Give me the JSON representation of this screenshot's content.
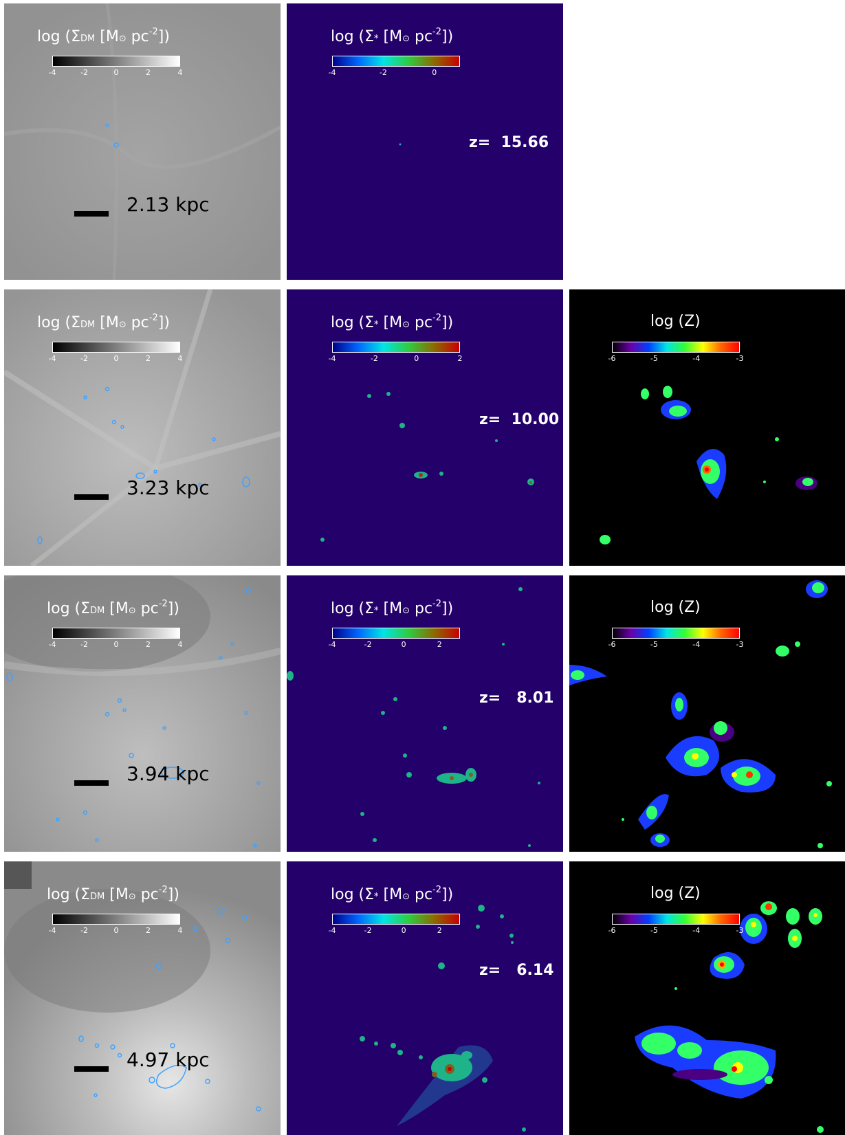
{
  "rows": [
    {
      "dm": {
        "cbar_title_main": "log (Σ",
        "cbar_title_sub": "DM",
        "cbar_title_unit": " [M",
        "cbar_title_sun": "⊙",
        "cbar_title_rest": " pc",
        "cbar_title_exp": "-2",
        "cbar_title_end": "])",
        "ticks": [
          "-4",
          "-2",
          "0",
          "2",
          "4"
        ],
        "scale_label": "2.13 kpc"
      },
      "stars": {
        "cbar_title_main": "log (Σ",
        "cbar_title_sub": "*",
        "cbar_title_unit": " [M",
        "cbar_title_sun": "⊙",
        "cbar_title_rest": " pc",
        "cbar_title_exp": "-2",
        "cbar_title_end": "])",
        "ticks": [
          "-4",
          "-2",
          "0"
        ],
        "redshift": "z=  15.66"
      },
      "metal": null
    },
    {
      "dm": {
        "cbar_title_main": "log (Σ",
        "cbar_title_sub": "DM",
        "cbar_title_unit": " [M",
        "cbar_title_sun": "⊙",
        "cbar_title_rest": " pc",
        "cbar_title_exp": "-2",
        "cbar_title_end": "])",
        "ticks": [
          "-4",
          "-2",
          "0",
          "2",
          "4"
        ],
        "scale_label": "3.23 kpc"
      },
      "stars": {
        "cbar_title_main": "log (Σ",
        "cbar_title_sub": "*",
        "cbar_title_unit": " [M",
        "cbar_title_sun": "⊙",
        "cbar_title_rest": " pc",
        "cbar_title_exp": "-2",
        "cbar_title_end": "])",
        "ticks": [
          "-4",
          "-2",
          "0",
          "2"
        ],
        "redshift": "z=  10.00"
      },
      "metal": {
        "cbar_title": "log (Z)",
        "ticks": [
          "-6",
          "-5",
          "-4",
          "-3"
        ]
      }
    },
    {
      "dm": {
        "cbar_title_main": "log (Σ",
        "cbar_title_sub": "DM",
        "cbar_title_unit": " [M",
        "cbar_title_sun": "⊙",
        "cbar_title_rest": " pc",
        "cbar_title_exp": "-2",
        "cbar_title_end": "])",
        "ticks": [
          "-4",
          "-2",
          "0",
          "2",
          "4"
        ],
        "scale_label": "3.94 kpc"
      },
      "stars": {
        "cbar_title_main": "log (Σ",
        "cbar_title_sub": "*",
        "cbar_title_unit": " [M",
        "cbar_title_sun": "⊙",
        "cbar_title_rest": " pc",
        "cbar_title_exp": "-2",
        "cbar_title_end": "])",
        "ticks": [
          "-4",
          "-2",
          "0",
          "2"
        ],
        "redshift": "z=   8.01"
      },
      "metal": {
        "cbar_title": "log (Z)",
        "ticks": [
          "-6",
          "-5",
          "-4",
          "-3"
        ]
      }
    },
    {
      "dm": {
        "cbar_title_main": "log (Σ",
        "cbar_title_sub": "DM",
        "cbar_title_unit": " [M",
        "cbar_title_sun": "⊙",
        "cbar_title_rest": " pc",
        "cbar_title_exp": "-2",
        "cbar_title_end": "])",
        "ticks": [
          "-4",
          "-2",
          "0",
          "2",
          "4"
        ],
        "scale_label": "4.97 kpc"
      },
      "stars": {
        "cbar_title_main": "log (Σ",
        "cbar_title_sub": "*",
        "cbar_title_unit": " [M",
        "cbar_title_sun": "⊙",
        "cbar_title_rest": " pc",
        "cbar_title_exp": "-2",
        "cbar_title_end": "])",
        "ticks": [
          "-4",
          "-2",
          "0",
          "2"
        ],
        "redshift": "z=   6.14"
      },
      "metal": {
        "cbar_title": "log (Z)",
        "ticks": [
          "-6",
          "-5",
          "-4",
          "-3"
        ]
      }
    }
  ],
  "colors": {
    "dm_bg": "#9a9a9a",
    "stars_bg": "#24006a",
    "metal_bg": "#000000",
    "contour": "#3fa2ff"
  }
}
